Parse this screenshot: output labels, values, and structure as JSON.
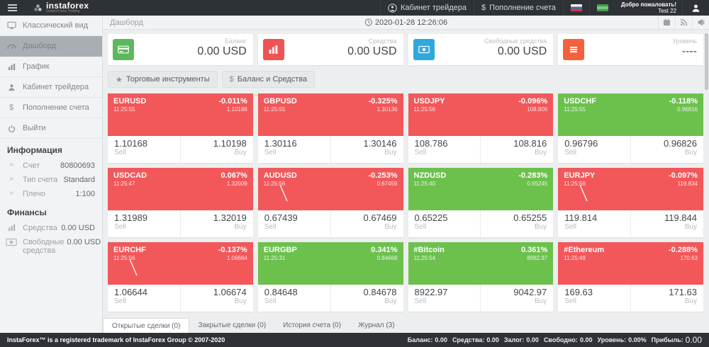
{
  "topbar": {
    "brand": "instaforex",
    "brand_sub": "Instant Forex Trading",
    "trader_cabinet_label": "Кабинет трейдера",
    "deposit_label": "Пополнение счета",
    "dollar": "$",
    "welcome_line1": "Добро пожаловать!",
    "welcome_line2": "Test 22"
  },
  "sidebar": {
    "items": [
      {
        "name": "classic-view",
        "icon": "desktop-icon",
        "label": "Классический вид"
      },
      {
        "name": "dashboard",
        "icon": "gauge-icon",
        "label": "Дашборд",
        "active": true
      },
      {
        "name": "chart",
        "icon": "bar-chart-icon",
        "label": "График"
      },
      {
        "name": "trader-cabinet",
        "icon": "user-icon",
        "label": "Кабинет трейдера"
      },
      {
        "name": "deposit",
        "icon": "dollar-icon",
        "label": "Пополнение счета"
      },
      {
        "name": "logout",
        "icon": "power-icon",
        "label": "Выйти"
      }
    ],
    "info_header": "Информация",
    "info": [
      {
        "icon": "chevrons-icon",
        "label": "Счет",
        "value": "80800693"
      },
      {
        "icon": "chevrons-icon",
        "label": "Тип счета",
        "value": "Standard"
      },
      {
        "icon": "chevrons-icon",
        "label": "Плечо",
        "value": "1:100"
      }
    ],
    "finance_header": "Финансы",
    "finance": [
      {
        "icon": "bar-chart-icon",
        "label": "Средства",
        "value": "0.00 USD"
      },
      {
        "icon": "banknote-icon",
        "label": "Свободные средства",
        "value": "0.00 USD"
      }
    ]
  },
  "header": {
    "breadcrumb": "Дашборд",
    "datetime": "2020-01-28 12:26:06"
  },
  "cards": [
    {
      "name": "balance",
      "label": "Баланс",
      "value": "0.00 USD",
      "icon": "credit-card-icon",
      "color": "#5cb85c"
    },
    {
      "name": "funds",
      "label": "Средства",
      "value": "0.00 USD",
      "icon": "bars-white-icon",
      "color": "#ef5352"
    },
    {
      "name": "free-funds",
      "label": "Свободные средства",
      "value": "0.00 USD",
      "icon": "banknote-icon",
      "color": "#2ea9dc"
    },
    {
      "name": "level",
      "label": "Уровень",
      "value": "----",
      "icon": "menu-icon",
      "color": "#f4603c"
    }
  ],
  "toolbar": {
    "instruments_label": "Торговые инструменты",
    "balance_label": "Баланс и Средства",
    "dollar": "$"
  },
  "labels": {
    "sell": "Sell",
    "buy": "Buy"
  },
  "colors": {
    "tile_red": "#f2575a",
    "tile_green": "#6cc14d"
  },
  "tiles": [
    {
      "symbol": "EURUSD",
      "time": "11:25:55",
      "change": "-0.011%",
      "price": "1.10188",
      "sell": "1.10168",
      "buy": "1.10198",
      "color": "red",
      "sparkline": false
    },
    {
      "symbol": "GBPUSD",
      "time": "11:25:55",
      "change": "-0.325%",
      "price": "1.30136",
      "sell": "1.30116",
      "buy": "1.30146",
      "color": "red",
      "sparkline": false
    },
    {
      "symbol": "USDJPY",
      "time": "11:25:56",
      "change": "-0.096%",
      "price": "108.806",
      "sell": "108.786",
      "buy": "108.816",
      "color": "red",
      "sparkline": false
    },
    {
      "symbol": "USDCHF",
      "time": "11:25:55",
      "change": "-0.118%",
      "price": "0.96816",
      "sell": "0.96796",
      "buy": "0.96826",
      "color": "green",
      "sparkline": false
    },
    {
      "symbol": "USDCAD",
      "time": "11:25:47",
      "change": "0.067%",
      "price": "1.32009",
      "sell": "1.31989",
      "buy": "1.32019",
      "color": "red",
      "sparkline": false
    },
    {
      "symbol": "AUDUSD",
      "time": "11:25:56",
      "change": "-0.253%",
      "price": "0.67459",
      "sell": "0.67439",
      "buy": "0.67469",
      "color": "red",
      "sparkline": true
    },
    {
      "symbol": "NZDUSD",
      "time": "11:25:40",
      "change": "-0.283%",
      "price": "0.65245",
      "sell": "0.65225",
      "buy": "0.65255",
      "color": "green",
      "sparkline": false
    },
    {
      "symbol": "EURJPY",
      "time": "11:25:56",
      "change": "-0.097%",
      "price": "119.834",
      "sell": "119.814",
      "buy": "119.844",
      "color": "red",
      "sparkline": true
    },
    {
      "symbol": "EURCHF",
      "time": "11:25:56",
      "change": "-0.137%",
      "price": "1.06664",
      "sell": "1.06644",
      "buy": "1.06674",
      "color": "red",
      "sparkline": true
    },
    {
      "symbol": "EURGBP",
      "time": "11:25:31",
      "change": "0.341%",
      "price": "0.84668",
      "sell": "0.84648",
      "buy": "0.84678",
      "color": "green",
      "sparkline": false
    },
    {
      "symbol": "#Bitcoin",
      "time": "11:25:54",
      "change": "0.361%",
      "price": "8982.97",
      "sell": "8922.97",
      "buy": "9042.97",
      "color": "green",
      "sparkline": false
    },
    {
      "symbol": "#Ethereum",
      "time": "11:25:49",
      "change": "-0.288%",
      "price": "170.63",
      "sell": "169.63",
      "buy": "171.63",
      "color": "red",
      "sparkline": false
    }
  ],
  "tabs": [
    {
      "name": "open-trades",
      "label": "Открытые сделки (0)",
      "active": true
    },
    {
      "name": "closed-trades",
      "label": "Закрытые сделки (0)"
    },
    {
      "name": "account-history",
      "label": "История счета (0)"
    },
    {
      "name": "journal",
      "label": "Журнал (3)"
    }
  ],
  "footer": {
    "copyright": "InstaForex™ is a registered trademark of InstaForex Group © 2007-2020",
    "stats": [
      {
        "label": "Баланс:",
        "value": "0.00"
      },
      {
        "label": "Средства:",
        "value": "0.00"
      },
      {
        "label": "Залог:",
        "value": "0.00"
      },
      {
        "label": "Свободно:",
        "value": "0.00"
      },
      {
        "label": "Уровень:",
        "value": "0.00%"
      },
      {
        "label": "Прибыль:",
        "value": "0.00",
        "big": true
      }
    ]
  }
}
